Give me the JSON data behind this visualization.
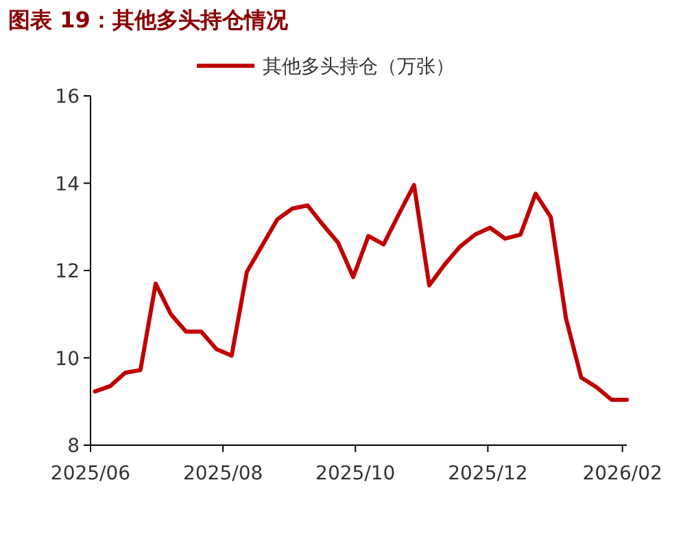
{
  "chart_data": {
    "type": "line",
    "title": "图表 19：其他多头持仓情况",
    "x": [
      "2025-06-03",
      "2025-06-10",
      "2025-06-17",
      "2025-06-24",
      "2025-07-01",
      "2025-07-08",
      "2025-07-15",
      "2025-07-22",
      "2025-07-29",
      "2025-08-05",
      "2025-08-12",
      "2025-08-19",
      "2025-08-26",
      "2025-09-02",
      "2025-09-09",
      "2025-09-16",
      "2025-09-23",
      "2025-09-30",
      "2025-10-07",
      "2025-10-14",
      "2025-10-21",
      "2025-10-28",
      "2025-11-04",
      "2025-11-11",
      "2025-11-18",
      "2025-11-25",
      "2025-12-02",
      "2025-12-09",
      "2025-12-16",
      "2025-12-23",
      "2025-12-30",
      "2026-01-06",
      "2026-01-13",
      "2026-01-20",
      "2026-01-27",
      "2026-02-03"
    ],
    "series": [
      {
        "name": "其他多头持仓（万张）",
        "color": "#c00000",
        "values": [
          9.23,
          9.35,
          9.66,
          9.72,
          11.7,
          11.0,
          10.6,
          10.6,
          10.2,
          10.05,
          11.97,
          12.57,
          13.17,
          13.42,
          13.49,
          13.05,
          12.64,
          11.85,
          12.79,
          12.6,
          13.29,
          13.96,
          11.66,
          12.13,
          12.54,
          12.82,
          12.98,
          12.73,
          12.82,
          13.76,
          13.22,
          10.9,
          9.55,
          9.33,
          9.04,
          9.04
        ]
      }
    ],
    "xlim": [
      "2025-06-01",
      "2026-02-03"
    ],
    "xticks": [
      {
        "value": "2025-06-01",
        "label": "2025/06"
      },
      {
        "value": "2025-08-01",
        "label": "2025/08"
      },
      {
        "value": "2025-10-01",
        "label": "2025/10"
      },
      {
        "value": "2025-12-01",
        "label": "2025/12"
      },
      {
        "value": "2026-02-01",
        "label": "2026/02"
      }
    ],
    "ylim": [
      8,
      16
    ],
    "yticks": [
      8,
      10,
      12,
      14,
      16
    ],
    "legend": "top",
    "grid": false,
    "marker": "none",
    "line_style": "solid"
  }
}
